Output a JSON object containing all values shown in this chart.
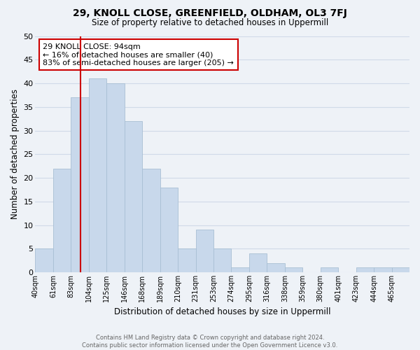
{
  "title": "29, KNOLL CLOSE, GREENFIELD, OLDHAM, OL3 7FJ",
  "subtitle": "Size of property relative to detached houses in Uppermill",
  "xlabel": "Distribution of detached houses by size in Uppermill",
  "ylabel": "Number of detached properties",
  "bin_labels": [
    "40sqm",
    "61sqm",
    "83sqm",
    "104sqm",
    "125sqm",
    "146sqm",
    "168sqm",
    "189sqm",
    "210sqm",
    "231sqm",
    "253sqm",
    "274sqm",
    "295sqm",
    "316sqm",
    "338sqm",
    "359sqm",
    "380sqm",
    "401sqm",
    "423sqm",
    "444sqm",
    "465sqm"
  ],
  "bar_values": [
    5,
    22,
    37,
    41,
    40,
    32,
    22,
    18,
    5,
    9,
    5,
    1,
    4,
    2,
    1,
    0,
    1,
    0,
    1,
    1,
    1
  ],
  "bar_color": "#c8d8eb",
  "bar_edge_color": "#a8bfd4",
  "grid_color": "#d0dae8",
  "vline_color": "#cc0000",
  "annotation_title": "29 KNOLL CLOSE: 94sqm",
  "annotation_line1": "← 16% of detached houses are smaller (40)",
  "annotation_line2": "83% of semi-detached houses are larger (205) →",
  "footer_line1": "Contains HM Land Registry data © Crown copyright and database right 2024.",
  "footer_line2": "Contains public sector information licensed under the Open Government Licence v3.0.",
  "ylim": [
    0,
    50
  ],
  "yticks": [
    0,
    5,
    10,
    15,
    20,
    25,
    30,
    35,
    40,
    45,
    50
  ],
  "n_bars": 21,
  "property_bin_index": 2,
  "bg_color": "#eef2f7"
}
